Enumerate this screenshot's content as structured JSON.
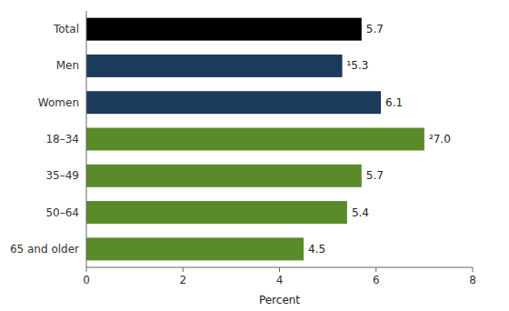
{
  "chart_data": {
    "type": "bar",
    "orientation": "horizontal",
    "categories": [
      "Total",
      "Men",
      "Women",
      "18–34",
      "35–49",
      "50–64",
      "65 and older"
    ],
    "values": [
      5.7,
      5.3,
      6.1,
      7.0,
      5.7,
      5.4,
      4.5
    ],
    "value_labels": [
      "5.7",
      "¹5.3",
      "6.1",
      "²7.0",
      "5.7",
      "5.4",
      "4.5"
    ],
    "data_labels": true,
    "colors": [
      "#000000",
      "#1b3a5c",
      "#1b3a5c",
      "#5a8a2a",
      "#5a8a2a",
      "#5a8a2a",
      "#5a8a2a"
    ],
    "xlabel": "Percent",
    "xlim": [
      0,
      8
    ],
    "xticks": [
      0,
      2,
      4,
      6,
      8
    ],
    "grid": false
  }
}
